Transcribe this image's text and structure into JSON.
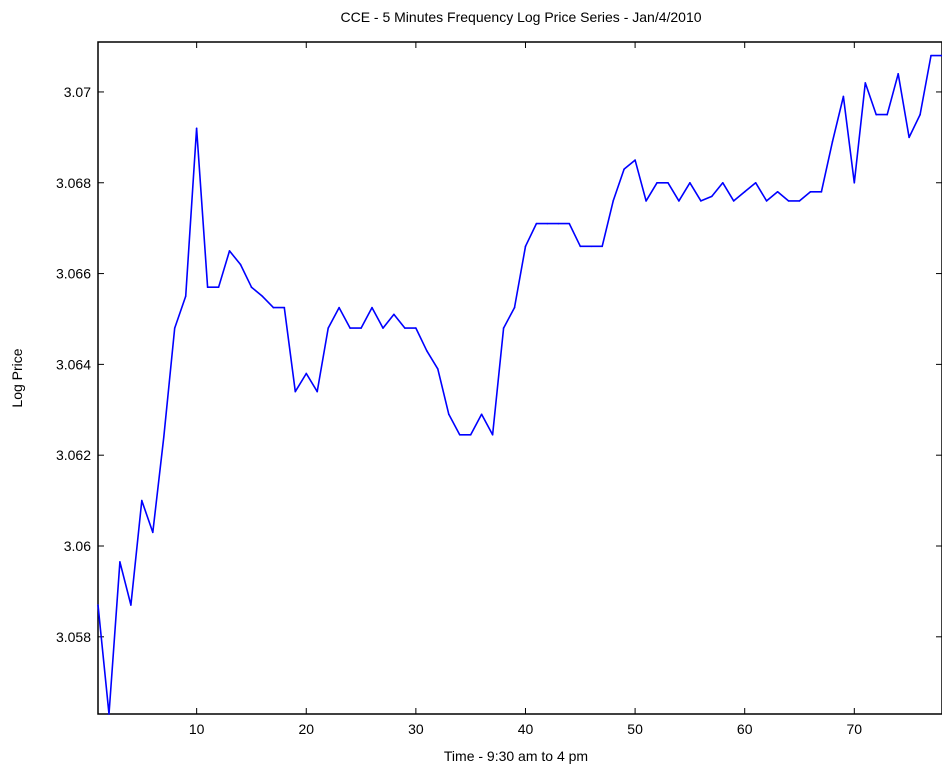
{
  "chart_data": {
    "type": "line",
    "title": "CCE - 5 Minutes Frequency Log Price Series - Jan/4/2010",
    "xlabel": "Time - 9:30 am to 4 pm",
    "ylabel": "Log Price",
    "xlim": [
      1,
      78
    ],
    "ylim": [
      3.0563,
      3.0711
    ],
    "x_ticks": [
      10,
      20,
      30,
      40,
      50,
      60,
      70
    ],
    "x_tick_labels": [
      "10",
      "20",
      "30",
      "40",
      "50",
      "60",
      "70"
    ],
    "y_ticks": [
      3.058,
      3.06,
      3.062,
      3.064,
      3.066,
      3.068,
      3.07
    ],
    "y_tick_labels": [
      "3.058",
      "3.06",
      "3.062",
      "3.064",
      "3.066",
      "3.068",
      "3.07"
    ],
    "grid": false,
    "series_color": "#0000ff",
    "x": [
      1,
      2,
      3,
      4,
      5,
      6,
      7,
      8,
      9,
      10,
      11,
      12,
      13,
      14,
      15,
      16,
      17,
      18,
      19,
      20,
      21,
      22,
      23,
      24,
      25,
      26,
      27,
      28,
      29,
      30,
      31,
      32,
      33,
      34,
      35,
      36,
      37,
      38,
      39,
      40,
      41,
      42,
      43,
      44,
      45,
      46,
      47,
      48,
      49,
      50,
      51,
      52,
      53,
      54,
      55,
      56,
      57,
      58,
      59,
      60,
      61,
      62,
      63,
      64,
      65,
      66,
      67,
      68,
      69,
      70,
      71,
      72,
      73,
      74,
      75,
      76,
      77,
      78
    ],
    "y": [
      3.0587,
      3.0563,
      3.05965,
      3.0587,
      3.061,
      3.0603,
      3.0624,
      3.0648,
      3.0655,
      3.0692,
      3.0657,
      3.0657,
      3.0665,
      3.0662,
      3.0657,
      3.0655,
      3.06525,
      3.06525,
      3.0634,
      3.0638,
      3.0634,
      3.0648,
      3.06525,
      3.0648,
      3.0648,
      3.06525,
      3.0648,
      3.0651,
      3.0648,
      3.0648,
      3.0643,
      3.0639,
      3.0629,
      3.06245,
      3.06245,
      3.0629,
      3.06245,
      3.0648,
      3.06525,
      3.0666,
      3.0671,
      3.0671,
      3.0671,
      3.0671,
      3.0666,
      3.0666,
      3.0666,
      3.0676,
      3.0683,
      3.0685,
      3.0676,
      3.068,
      3.068,
      3.0676,
      3.068,
      3.0676,
      3.0677,
      3.068,
      3.0676,
      3.0678,
      3.068,
      3.0676,
      3.0678,
      3.0676,
      3.0676,
      3.0678,
      3.0678,
      3.0689,
      3.0699,
      3.068,
      3.0702,
      3.0695,
      3.0695,
      3.0704,
      3.069,
      3.0695,
      3.0708,
      3.0708
    ]
  }
}
